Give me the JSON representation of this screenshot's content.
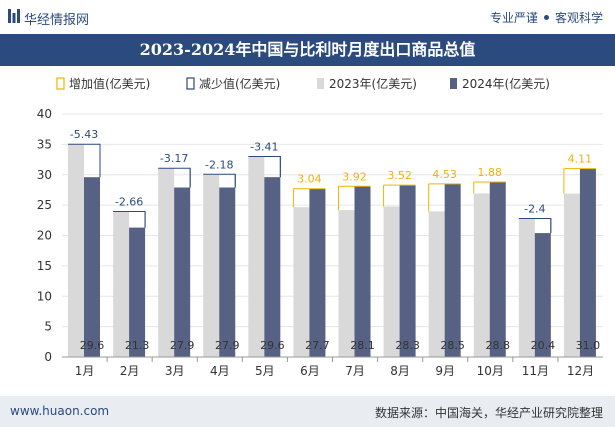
{
  "header": {
    "brand": "华经情报网",
    "tagline_left": "专业严谨",
    "tagline_right": "客观科学"
  },
  "footer": {
    "website": "www.huaon.com",
    "source": "数据来源：中国海关，华经产业研究院整理"
  },
  "colors": {
    "brand_blue": "#2b4a7e",
    "bar_2023": "#d9d9d9",
    "bar_2024": "#566184",
    "increase": "#f0b400",
    "decrease": "#2b4a7e"
  },
  "chart_data": {
    "type": "bar",
    "title": "2023-2024年中国与比利时月度出口商品总值",
    "xlabel": "",
    "ylabel": "",
    "ylim": [
      0,
      40
    ],
    "yticks": [
      0,
      5,
      10,
      15,
      20,
      25,
      30,
      35,
      40
    ],
    "grid": true,
    "legend_position": "top",
    "legend": [
      "增加值(亿美元)",
      "减少值(亿美元)",
      "2023年(亿美元)",
      "2024年(亿美元)"
    ],
    "categories": [
      "1月",
      "2月",
      "3月",
      "4月",
      "5月",
      "6月",
      "7月",
      "8月",
      "9月",
      "10月",
      "11月",
      "12月"
    ],
    "series": [
      {
        "name": "2023年(亿美元)",
        "values": [
          35.03,
          23.96,
          31.07,
          30.08,
          33.01,
          24.66,
          24.18,
          24.78,
          23.97,
          26.92,
          22.8,
          26.89
        ]
      },
      {
        "name": "2024年(亿美元)",
        "values": [
          29.6,
          21.3,
          27.9,
          27.9,
          29.6,
          27.7,
          28.1,
          28.3,
          28.5,
          28.8,
          20.4,
          31.0
        ]
      }
    ],
    "value_labels_2024": [
      "29.6",
      "21.3",
      "27.9",
      "27.9",
      "29.6",
      "27.7",
      "28.1",
      "28.3",
      "28.5",
      "28.8",
      "20.4",
      "31.0"
    ],
    "change": [
      -5.43,
      -2.66,
      -3.17,
      -2.18,
      -3.41,
      3.04,
      3.92,
      3.52,
      4.53,
      1.88,
      -2.4,
      4.11
    ],
    "change_labels": [
      "-5.43",
      "-2.66",
      "-3.17",
      "-2.18",
      "-3.41",
      "3.04",
      "3.92",
      "3.52",
      "4.53",
      "1.88",
      "-2.4",
      "4.11"
    ]
  }
}
